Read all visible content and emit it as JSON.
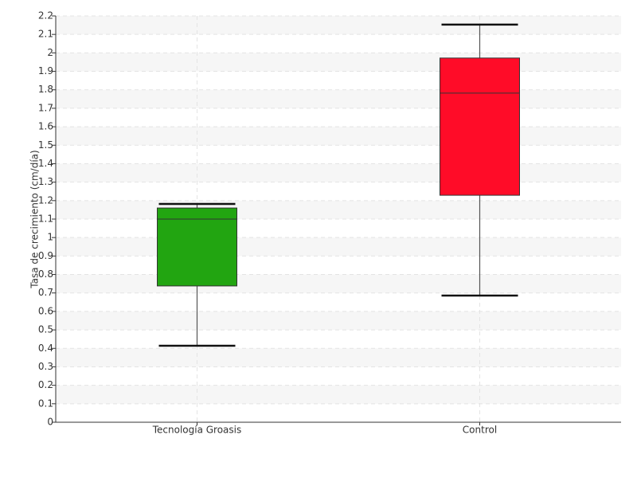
{
  "chart_data": {
    "type": "box",
    "y_label": "Tasa de crecimiento (cm/día)",
    "categories": [
      "Tecnología Groasis",
      "Control"
    ],
    "boxes": [
      {
        "low": 0.414,
        "q1": 0.738,
        "median": 1.1,
        "q3": 1.16,
        "high": 1.182,
        "color": "#22a511"
      },
      {
        "low": 0.686,
        "q1": 1.229,
        "median": 1.782,
        "q3": 1.972,
        "high": 2.153,
        "color": "#ff0c28"
      }
    ],
    "ylim": [
      0,
      2.2
    ],
    "yticks": [
      0,
      0.1,
      0.2,
      0.3,
      0.4,
      0.5,
      0.6,
      0.7,
      0.8,
      0.9,
      1,
      1.1,
      1.2,
      1.3,
      1.4,
      1.5,
      1.6,
      1.7,
      1.8,
      1.9,
      2,
      2.1,
      2.2
    ],
    "grid": true
  }
}
